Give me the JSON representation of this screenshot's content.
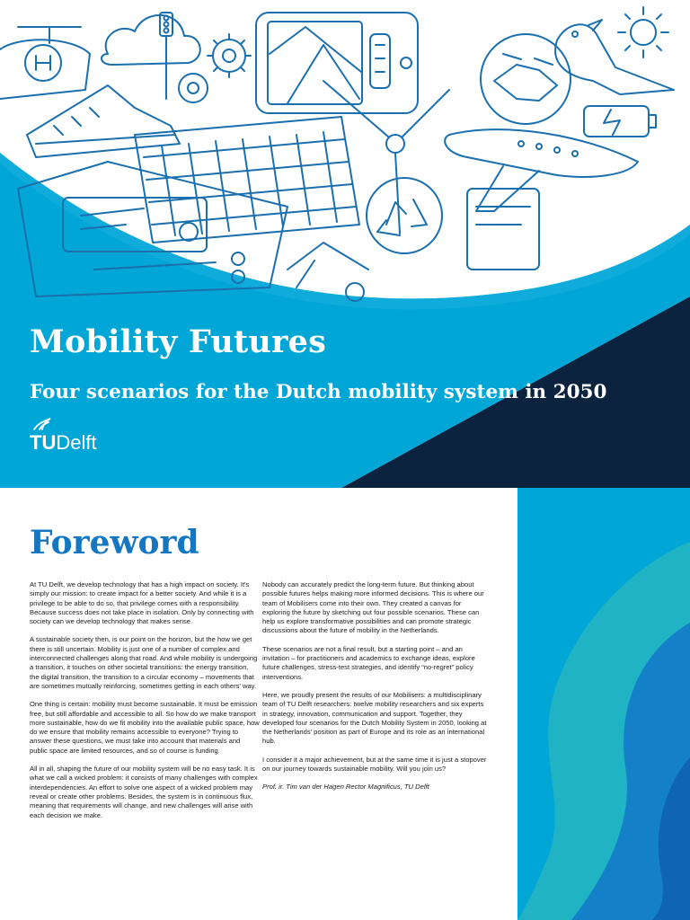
{
  "cover": {
    "title": "Mobility Futures",
    "subtitle": "Four scenarios for the Dutch mobility system in 2050",
    "logo": {
      "tu": "TU",
      "delft": "Delft"
    },
    "icons": [
      "helicopter-icon",
      "sneaker-icon",
      "cloud-icon",
      "gears-icon",
      "traffic-light-icon",
      "smartphone-map-icon",
      "sun-icon",
      "bird-icon",
      "handshake-icon",
      "battery-icon",
      "airplane-icon",
      "keyboard-icon",
      "wind-turbine-icon",
      "recycle-icon",
      "laptop-icon",
      "bicycle-icon"
    ],
    "colors": {
      "sky": "#00a6d6",
      "navy": "#0c2340",
      "line": "#1a6fae"
    }
  },
  "foreword": {
    "title": "Foreword",
    "left_paragraphs": [
      "At TU Delft, we develop technology that has a high impact on society. It's simply our mission: to create impact for a better society. And while it is a privilege to be able to do so, that privilege comes with a responsibility. Because success does not take place in isolation. Only by connecting with society can we develop technology that makes sense.",
      "A sustainable society then, is our point on the horizon, but the how we get there is still uncertain. Mobility is just one of a number of complex and interconnected challenges along that road. And while mobility is undergoing a transition, it touches on other societal transitions: the energy transition, the digital transition, the transition to a circular economy – movements that are sometimes mutually reinforcing, sometimes getting in each others' way.",
      "One thing is certain: mobility must become sustainable. It must be emission free, but still affordable and accessible to all. So how do we make transport more sustainable, how do we fit mobility into the available public space, how do we ensure that mobility remains accessible to everyone? Trying to answer these questions, we must take into account that materials and public space are limited resources, and so of course is funding.",
      "All in all, shaping the future of our mobility system will be no easy task. It is what we call a wicked problem: it consists of many challenges with complex interdependencies. An effort to solve one aspect of a wicked problem may reveal or create other problems. Besides, the system is in continuous flux, meaning that requirements will change, and new challenges will arise with each decision we make."
    ],
    "right_paragraphs": [
      "Nobody can accurately predict the long-term future. But thinking about possible futures helps making more informed decisions. This is where our team of Mobilisers come into their own. They created a canvas for exploring the future by sketching out four possible scenarios. These can help us explore transformative possibilities and can promote strategic discussions about the future of mobility in the Netherlands.",
      "These scenarios are not a final result, but a starting point – and an invitation – for practitioners and academics to exchange ideas, explore future challenges, stress-test strategies, and identify “no-regret” policy interventions.",
      "Here, we proudly present the results of our Mobilisers: a multidisciplinary team of TU Delft researchers: twelve mobility researchers and six experts in strategy, innovation, communication and support. Together, they developed four scenarios for the Dutch Mobility System in 2050, looking at the Netherlands' position as part of Europe and its role as an international hub.",
      "I consider it a major achievement, but at the same time it is just a stopover on our journey towards sustainable mobility. Will you join us?"
    ],
    "signature": "Prof. ir. Tim van der Hagen Rector Magnificus, TU Delft"
  }
}
